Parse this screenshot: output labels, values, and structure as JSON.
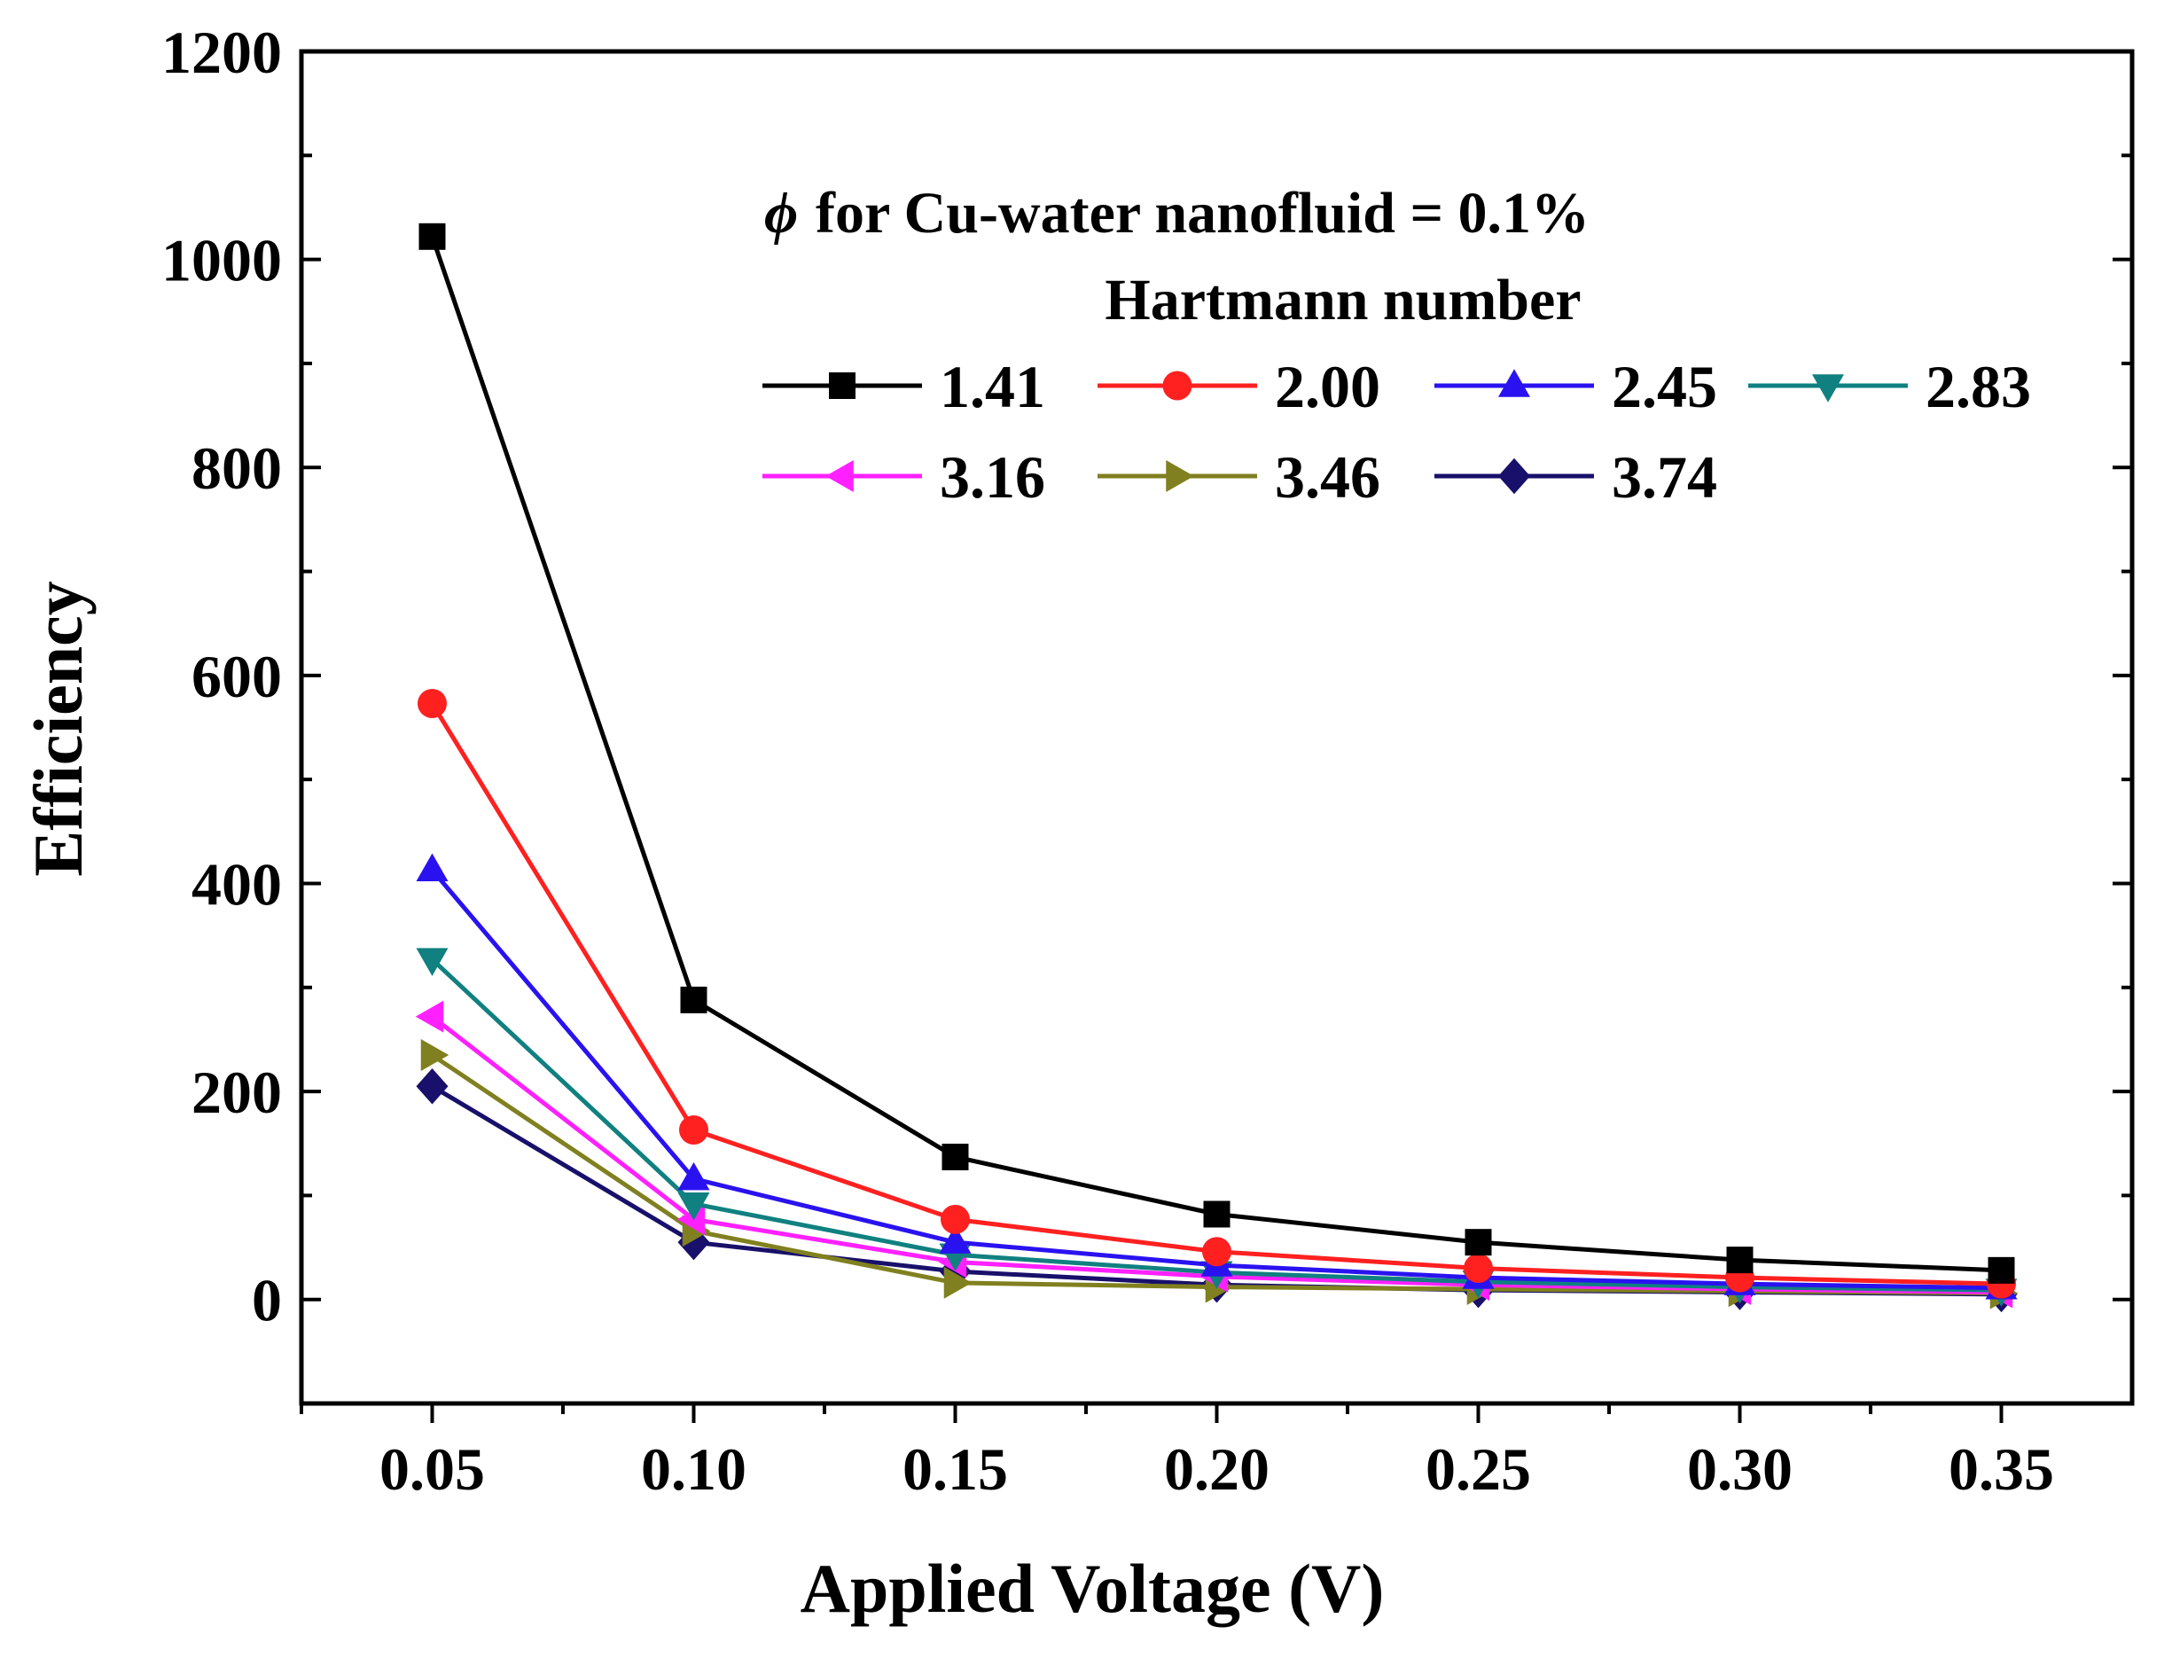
{
  "chart_data": {
    "type": "line",
    "title": "",
    "xlabel": "Applied Voltage (V)",
    "ylabel": "Efficiency",
    "xlim": [
      0.025,
      0.375
    ],
    "ylim": [
      -100,
      1200
    ],
    "x_ticks": [
      "0.05",
      "0.10",
      "0.15",
      "0.20",
      "0.25",
      "0.30",
      "0.35"
    ],
    "y_ticks": [
      "0",
      "200",
      "400",
      "600",
      "800",
      "1000",
      "1200"
    ],
    "grid": false,
    "legend": {
      "position": "top-right",
      "symbol": "ϕ",
      "line1": "for Cu-water nanofluid = 0.1%",
      "line2": "Hartmann number"
    },
    "x": [
      0.05,
      0.1,
      0.15,
      0.2,
      0.25,
      0.3,
      0.35
    ],
    "series": [
      {
        "name": "1.41",
        "color": "#000000",
        "marker": "square",
        "values": [
          1022,
          288,
          137,
          82,
          55,
          38,
          28
        ]
      },
      {
        "name": "2.00",
        "color": "#ff2020",
        "marker": "circle",
        "values": [
          573,
          163,
          77,
          46,
          30,
          21,
          15
        ]
      },
      {
        "name": "2.45",
        "color": "#2a12f0",
        "marker": "triangle-up",
        "values": [
          413,
          116,
          55,
          33,
          21,
          15,
          11
        ]
      },
      {
        "name": "2.83",
        "color": "#108080",
        "marker": "triangle-down",
        "values": [
          327,
          92,
          43,
          26,
          17,
          12,
          9
        ]
      },
      {
        "name": "3.16",
        "color": "#ff20ff",
        "marker": "triangle-left",
        "values": [
          272,
          77,
          36,
          22,
          14,
          10,
          7
        ]
      },
      {
        "name": "3.46",
        "color": "#808020",
        "marker": "triangle-right",
        "values": [
          235,
          66,
          16,
          12,
          10,
          8,
          6
        ]
      },
      {
        "name": "3.74",
        "color": "#18106a",
        "marker": "diamond",
        "values": [
          205,
          55,
          27,
          14,
          9,
          7,
          5
        ]
      }
    ]
  }
}
